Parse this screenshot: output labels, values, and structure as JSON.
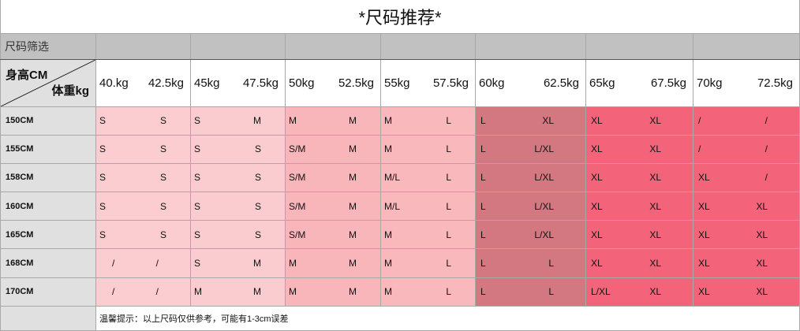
{
  "title": "*尺码推荐*",
  "filter_label": "尺码筛选",
  "corner": {
    "height_label": "身高CM",
    "weight_label": "体重kg"
  },
  "weight_columns": [
    [
      "40.kg",
      "42.5kg"
    ],
    [
      "45kg",
      "47.5kg"
    ],
    [
      "50kg",
      "52.5kg"
    ],
    [
      "55kg",
      "57.5kg"
    ],
    [
      "60kg",
      "62.5kg"
    ],
    [
      "65kg",
      "67.5kg"
    ],
    [
      "70kg",
      "72.5kg"
    ]
  ],
  "column_colors": [
    "#fbcdd0",
    "#fbcccf",
    "#f8b6ba",
    "#f8b8bc",
    "#d37880",
    "#f3647a",
    "#f3647a"
  ],
  "rows": [
    {
      "height": "150CM",
      "sizes": [
        [
          "S",
          "S"
        ],
        [
          "S",
          "M"
        ],
        [
          "M",
          "M"
        ],
        [
          "M",
          "L"
        ],
        [
          "L",
          "XL"
        ],
        [
          "XL",
          "XL"
        ],
        [
          "/",
          "/"
        ]
      ]
    },
    {
      "height": "155CM",
      "sizes": [
        [
          "S",
          "S"
        ],
        [
          "S",
          "S"
        ],
        [
          "S/M",
          "M"
        ],
        [
          "M",
          "L"
        ],
        [
          "L",
          "L/XL"
        ],
        [
          "XL",
          "XL"
        ],
        [
          "/",
          "/"
        ]
      ]
    },
    {
      "height": "158CM",
      "sizes": [
        [
          "S",
          "S"
        ],
        [
          "S",
          "S"
        ],
        [
          "S/M",
          "M"
        ],
        [
          "M/L",
          "L"
        ],
        [
          "L",
          "L/XL"
        ],
        [
          "XL",
          "XL"
        ],
        [
          "XL",
          "/"
        ]
      ]
    },
    {
      "height": "160CM",
      "sizes": [
        [
          "S",
          "S"
        ],
        [
          "S",
          "S"
        ],
        [
          "S/M",
          "M"
        ],
        [
          "M/L",
          "L"
        ],
        [
          "L",
          "L/XL"
        ],
        [
          "XL",
          "XL"
        ],
        [
          "XL",
          "XL"
        ]
      ]
    },
    {
      "height": "165CM",
      "sizes": [
        [
          "S",
          "S"
        ],
        [
          "S",
          "S"
        ],
        [
          "S/M",
          "M"
        ],
        [
          "M",
          "L"
        ],
        [
          "L",
          "L/XL"
        ],
        [
          "XL",
          "XL"
        ],
        [
          "XL",
          "XL"
        ]
      ]
    },
    {
      "height": "168CM",
      "sizes": [
        [
          "/",
          "/"
        ],
        [
          "S",
          "M"
        ],
        [
          "M",
          "M"
        ],
        [
          "M",
          "L"
        ],
        [
          "L",
          "L"
        ],
        [
          "XL",
          "XL"
        ],
        [
          "XL",
          "XL"
        ]
      ]
    },
    {
      "height": "170CM",
      "sizes": [
        [
          "/",
          "/"
        ],
        [
          "M",
          "M"
        ],
        [
          "M",
          "M"
        ],
        [
          "M",
          "L"
        ],
        [
          "L",
          "L"
        ],
        [
          "L/XL",
          "XL"
        ],
        [
          "XL",
          "XL"
        ]
      ]
    }
  ],
  "note": "温馨提示：以上尺码仅供参考，可能有1-3cm误差"
}
